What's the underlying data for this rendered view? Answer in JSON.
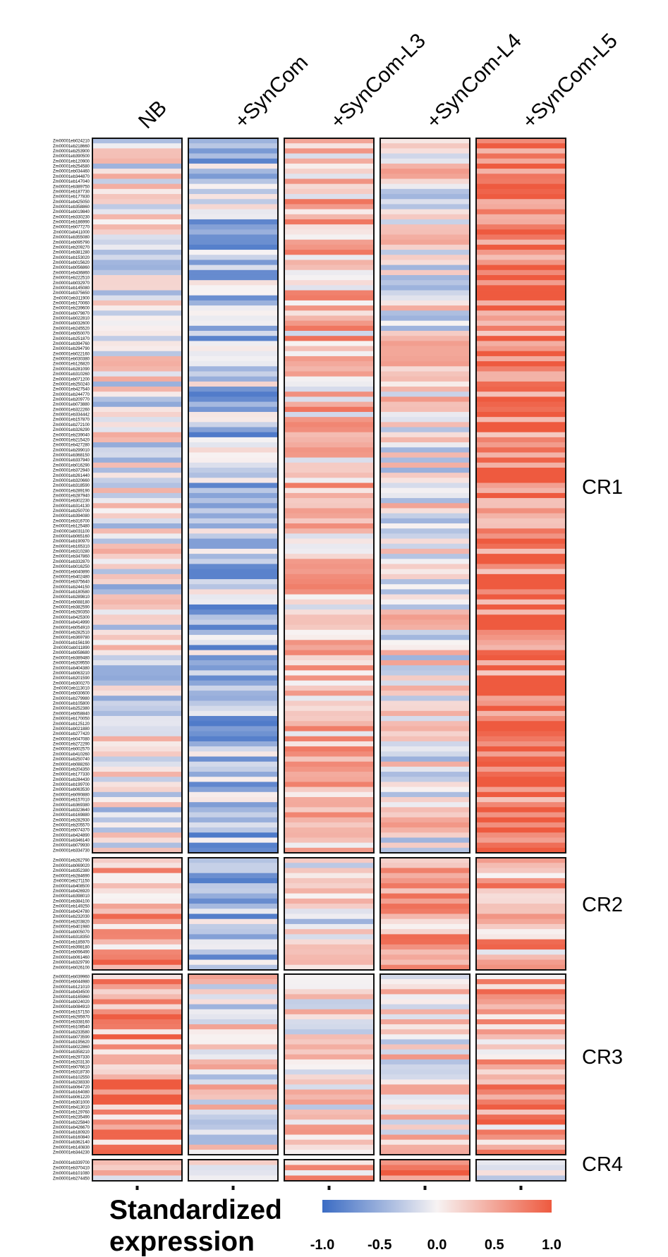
{
  "chart_data": {
    "type": "heatmap",
    "columns": [
      "NB",
      "+SynCom",
      "+SynCom-L3",
      "+SynCom-L4",
      "+SynCom-L5"
    ],
    "clusters": [
      {
        "name": "CR1",
        "genes": [
          "Zm00001eb024210",
          "Zm00001eb218660",
          "Zm00001eb253900",
          "Zm00001eb390500",
          "Zm00001eb120900",
          "Zm00001eb254580",
          "Zm00001eb034460",
          "Zm00001eb344870",
          "Zm00001eb147040",
          "Zm00001eb389750",
          "Zm00001eb187730",
          "Zm00001eb177830",
          "Zm00001eb425050",
          "Zm00001eb358860",
          "Zm00001eb019840",
          "Zm00001eb330230",
          "Zm00001eb186990",
          "Zm00001eb077270",
          "Zm00001eb411000",
          "Zm00001eb355080",
          "Zm00001eb095790",
          "Zm00001eb209270",
          "Zm00001eb381280",
          "Zm00001eb153020",
          "Zm00001eb015620",
          "Zm00001eb056860",
          "Zm00001eb436860",
          "Zm00001eb222510",
          "Zm00001eb032970",
          "Zm00001eb145080",
          "Zm00001eb375650",
          "Zm00001eb311900",
          "Zm00001eb170060",
          "Zm00001eb239600",
          "Zm00001eb079870",
          "Zm00001eb022810",
          "Zm00001eb032600",
          "Zm00001eb245520",
          "Zm00001eb050070",
          "Zm00001eb251870",
          "Zm00001eb394760",
          "Zm00001eb294790",
          "Zm00001eb022160",
          "Zm00001eb030380",
          "Zm00001eb126820",
          "Zm00001eb281090",
          "Zm00001eb310260",
          "Zm00001eb071200",
          "Zm00001eb250240",
          "Zm00001eb427540",
          "Zm00001eb244770",
          "Zm00001eb209770",
          "Zm00001eb073880",
          "Zm00001eb322260",
          "Zm00001eb334442",
          "Zm00001eb157870",
          "Zm00001eb272100",
          "Zm00001eb326290",
          "Zm00001eb239040",
          "Zm00001eb215420",
          "Zm00001eb427280",
          "Zm00001eb299010",
          "Zm00001eb368150",
          "Zm00001eb337940",
          "Zm00001eb016290",
          "Zm00001eb372940",
          "Zm00001eb261440",
          "Zm00001eb320660",
          "Zm00001eb318590",
          "Zm00001eb289190",
          "Zm00001eb287940",
          "Zm00001eb302230",
          "Zm00001eb314130",
          "Zm00001eb250700",
          "Zm00001eb394080",
          "Zm00001eb316700",
          "Zm00001eb125480",
          "Zm00001eb031100",
          "Zm00001eb065160",
          "Zm00001eb190970",
          "Zm00001eb165310",
          "Zm00001eb310280",
          "Zm00001eb347860",
          "Zm00001eb332870",
          "Zm00001eb016250",
          "Zm00001eb040890",
          "Zm00001eb402480",
          "Zm00001eb375640",
          "Zm00001eb244150",
          "Zm00001eb180580",
          "Zm00001eb289810",
          "Zm00001eb088180",
          "Zm00001eb382590",
          "Zm00001eb290350",
          "Zm00001eb425300",
          "Zm00001eb414990",
          "Zm00001eb054910",
          "Zm00001eb282510",
          "Zm00001eb369780",
          "Zm00001eb156190",
          "Zm00001eb011890",
          "Zm00001eb058680",
          "Zm00001eb389480",
          "Zm00001eb209550",
          "Zm00001eb404380",
          "Zm00001eb063210",
          "Zm00001eb201590",
          "Zm00001eb300270",
          "Zm00001eb113010",
          "Zm00001eb030600",
          "Zm00001eb279980",
          "Zm00001eb105800",
          "Zm00001eb252380",
          "Zm00001eb058840",
          "Zm00001eb170050",
          "Zm00001eb125120",
          "Zm00001eb021880",
          "Zm00001eb277420",
          "Zm00001eb047080",
          "Zm00001eb272290",
          "Zm00001eb002570",
          "Zm00001eb410260",
          "Zm00001eb250740",
          "Zm00001eb088260",
          "Zm00001eb204350",
          "Zm00001eb177330",
          "Zm00001eb284430",
          "Zm00001eb199700",
          "Zm00001eb063530",
          "Zm00001eb090880",
          "Zm00001eb157010",
          "Zm00001eb369380",
          "Zm00001eb323640",
          "Zm00001eb169880",
          "Zm00001eb282930",
          "Zm00001eb205570",
          "Zm00001eb074370",
          "Zm00001eb424890",
          "Zm00001eb346140",
          "Zm00001eb079930",
          "Zm00001eb334730"
        ]
      },
      {
        "name": "CR2",
        "genes": [
          "Zm00001eb262790",
          "Zm00001eb069020",
          "Zm00001eb352380",
          "Zm00001eb284690",
          "Zm00001eb271150",
          "Zm00001eb408500",
          "Zm00001eb426920",
          "Zm00001eb398010",
          "Zm00001eb384100",
          "Zm00001eb149250",
          "Zm00001eb424780",
          "Zm00001eb232030",
          "Zm00001eb203820",
          "Zm00001eb401980",
          "Zm00001eb005070",
          "Zm00001eb318350",
          "Zm00001eb185970",
          "Zm00001eb398180",
          "Zm00001eb096490",
          "Zm00001eb061460",
          "Zm00001eb329790",
          "Zm00001eb026100"
        ]
      },
      {
        "name": "CR3",
        "genes": [
          "Zm00001eb039960",
          "Zm00001eb044980",
          "Zm00001eb121010",
          "Zm00001eb434500",
          "Zm00001eb165960",
          "Zm00001eb024020",
          "Zm00001eb084910",
          "Zm00001eb157150",
          "Zm00001eb295970",
          "Zm00001eb338160",
          "Zm00001eb108540",
          "Zm00001eb233580",
          "Zm00001eb073590",
          "Zm00001eb195620",
          "Zm00001eb022860",
          "Zm00001eb358210",
          "Zm00001eb297330",
          "Zm00001eb203130",
          "Zm00001eb076610",
          "Zm00001eb318730",
          "Zm00001eb102550",
          "Zm00001eb238330",
          "Zm00001eb064720",
          "Zm00001eb164080",
          "Zm00001eb061220",
          "Zm00001eb301000",
          "Zm00001eb413010",
          "Zm00001eb129760",
          "Zm00001eb235490",
          "Zm00001eb225840",
          "Zm00001eb426670",
          "Zm00001eb180920",
          "Zm00001eb160840",
          "Zm00001eb362140",
          "Zm00001eb140830",
          "Zm00001eb344230"
        ]
      },
      {
        "name": "CR4",
        "genes": [
          "Zm00001eb339700",
          "Zm00001eb370410",
          "Zm00001eb101080",
          "Zm00001eb274450"
        ]
      }
    ],
    "colorscale": {
      "min": -1.0,
      "max": 1.0,
      "low": "#3b6cc4",
      "mid": "#f7f3f3",
      "high": "#ee5a3f"
    },
    "legend": {
      "title_lines": [
        "Standardized",
        "expression"
      ],
      "ticks": [
        "-1.0",
        "-0.5",
        "0.0",
        "0.5",
        "1.0"
      ]
    },
    "cluster_means": {
      "CR1": [
        -0.05,
        -0.35,
        0.3,
        0.05,
        0.8
      ],
      "CR2": [
        0.5,
        -0.4,
        0.05,
        0.45,
        0.4
      ],
      "CR3": [
        0.6,
        0.05,
        0.1,
        0.15,
        0.45
      ],
      "CR4": [
        0.2,
        0.1,
        0.45,
        0.65,
        0.1
      ]
    }
  }
}
